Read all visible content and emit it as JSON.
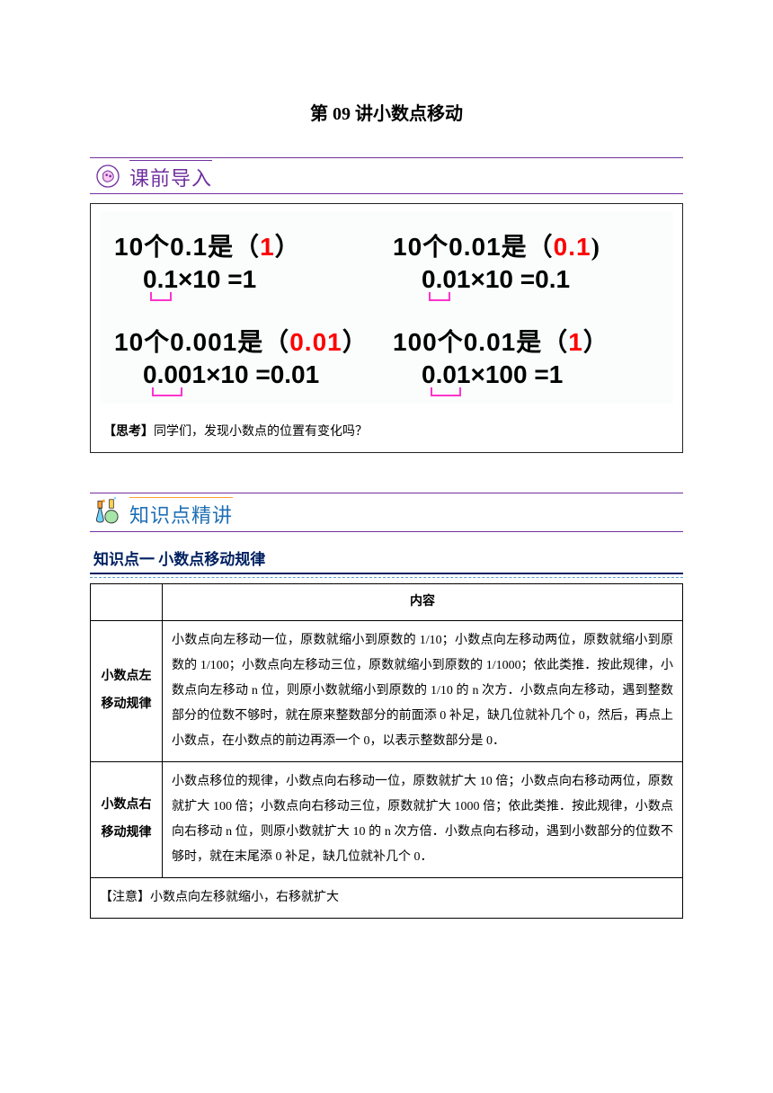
{
  "title": "第 09 讲小数点移动",
  "section1": {
    "label": "课前导入",
    "cells": [
      {
        "pre": "10个0.1是（",
        "ans": "1",
        "post": "）",
        "eq_num": "0.1",
        "eq_mul": "×10 =1",
        "ulClass": "sm"
      },
      {
        "pre": "10个0.01是（",
        "ans": "0.1",
        "post": ")",
        "eq_num": "0.01",
        "eq_mul": "×10 =0.1",
        "ulClass": "sm"
      },
      {
        "pre": "10个0.001是（",
        "ans": "0.01",
        "post": "）",
        "eq_num": "0.001",
        "eq_mul": "×10 =0.01",
        "ulClass": "mid"
      },
      {
        "pre": "100个0.01是（",
        "ans": "1",
        "post": "）",
        "eq_num": "0.01",
        "eq_mul": "×100 =1",
        "ulClass": "mid"
      }
    ],
    "think_label": "【思考】",
    "think_text": "同学们，发现小数点的位置有变化吗？"
  },
  "section2": {
    "label": "知识点精讲"
  },
  "kp": {
    "heading": "知识点一  小数点移动规律",
    "table_header": "内容",
    "rows": [
      {
        "side": "小数点左移动规律",
        "body": "小数点向左移动一位，原数就缩小到原数的 1/10；小数点向左移动两位，原数就缩小到原数的 1/100；小数点向左移动三位，原数就缩小到原数的 1/1000；依此类推．按此规律，小数点向左移动 n 位，则原小数就缩小到原数的 1/10 的 n 次方．小数点向左移动，遇到整数部分的位数不够时，就在原来整数部分的前面添 0 补足，缺几位就补几个 0，然后，再点上小数点，在小数点的前边再添一个 0，以表示整数部分是 0．"
      },
      {
        "side": "小数点右移动规律",
        "body": "小数点移位的规律，小数点向右移动一位，原数就扩大 10 倍；小数点向右移动两位，原数就扩大 100 倍；小数点向右移动三位，原数就扩大 1000 倍；依此类推．按此规律，小数点向右移动 n 位，则原小数就扩大 10 的 n 次方倍．小数点向右移动，遇到小数部分的位数不够时，就在末尾添 0 补足，缺几位就补几个 0．"
      }
    ],
    "note": "【注意】小数点向左移就缩小，右移就扩大"
  },
  "colors": {
    "purple": "#7030a0",
    "red": "#ff0000",
    "pink": "#ff33cc",
    "navy": "#002060",
    "blue": "#5b9bd5"
  }
}
